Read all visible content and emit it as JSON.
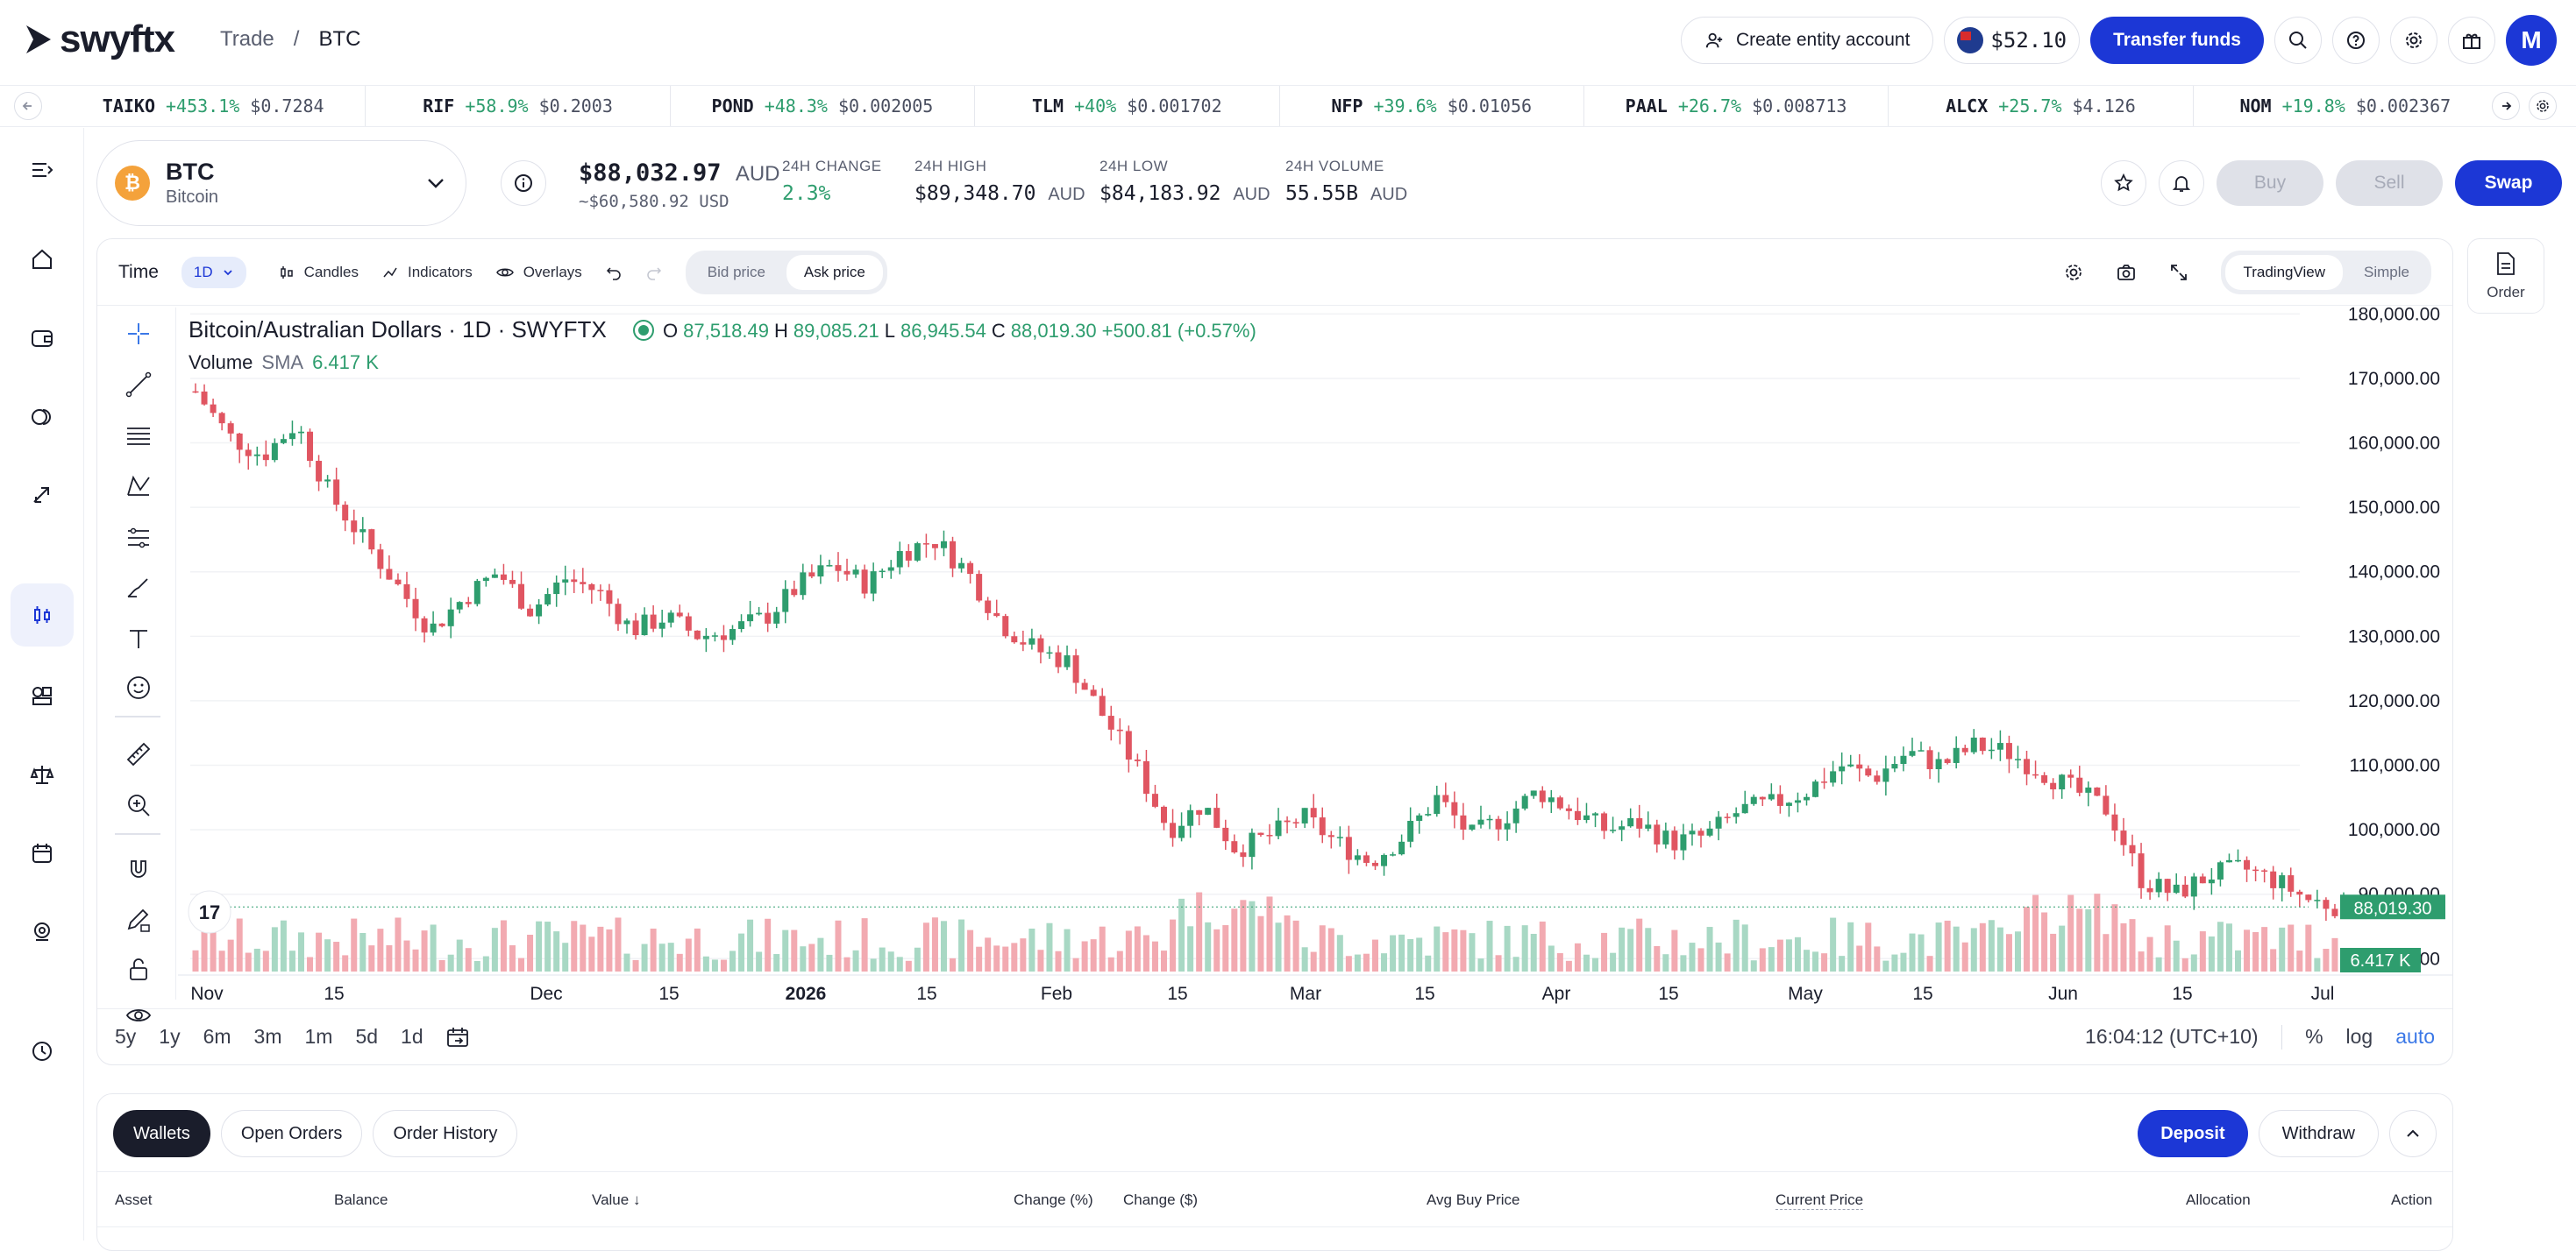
{
  "header": {
    "logo_text": "swyftx",
    "breadcrumb": [
      "Trade",
      "/",
      "BTC"
    ],
    "create_entity_label": "Create entity account",
    "balance": "$52.10",
    "transfer_label": "Transfer funds",
    "avatar_initial": "M"
  },
  "ticker": [
    {
      "symbol": "TAIKO",
      "change": "+453.1%",
      "price": "$0.7284"
    },
    {
      "symbol": "RIF",
      "change": "+58.9%",
      "price": "$0.2003"
    },
    {
      "symbol": "POND",
      "change": "+48.3%",
      "price": "$0.002005"
    },
    {
      "symbol": "TLM",
      "change": "+40%",
      "price": "$0.001702"
    },
    {
      "symbol": "NFP",
      "change": "+39.6%",
      "price": "$0.01056"
    },
    {
      "symbol": "PAAL",
      "change": "+26.7%",
      "price": "$0.008713"
    },
    {
      "symbol": "ALCX",
      "change": "+25.7%",
      "price": "$4.126"
    },
    {
      "symbol": "NOM",
      "change": "+19.8%",
      "price": "$0.002367"
    }
  ],
  "asset": {
    "code": "BTC",
    "name": "Bitcoin",
    "badge": "₿",
    "price": "$88,032.97",
    "price_unit": "AUD",
    "price_usd": "~$60,580.92 USD",
    "change_label": "24H CHANGE",
    "change_value": "2.3%",
    "high_label": "24H HIGH",
    "high_value": "$89,348.70",
    "high_unit": "AUD",
    "low_label": "24H LOW",
    "low_value": "$84,183.92",
    "low_unit": "AUD",
    "volume_label": "24H VOLUME",
    "volume_value": "55.55B",
    "volume_unit": "AUD",
    "buy_label": "Buy",
    "sell_label": "Sell",
    "swap_label": "Swap"
  },
  "chart_toolbar": {
    "time_label": "Time",
    "interval": "1D",
    "candles_label": "Candles",
    "indicators_label": "Indicators",
    "overlays_label": "Overlays",
    "bid_label": "Bid price",
    "ask_label": "Ask price",
    "mode_tradingview": "TradingView",
    "mode_simple": "Simple"
  },
  "chart_legend": {
    "title": "Bitcoin/Australian Dollars · 1D · SWYFTX",
    "o_label": "O",
    "o_value": "87,518.49",
    "h_label": "H",
    "h_value": "89,085.21",
    "l_label": "L",
    "l_value": "86,945.54",
    "c_label": "C",
    "c_value": "88,019.30",
    "change": "+500.81 (+0.57%)",
    "volume_label": "Volume",
    "volume_sma": "SMA",
    "volume_value": "6.417 K"
  },
  "chart_data": {
    "type": "candlestick",
    "y_ticks": [
      "180,000.00",
      "170,000.00",
      "160,000.00",
      "150,000.00",
      "140,000.00",
      "130,000.00",
      "120,000.00",
      "110,000.00",
      "100,000.00",
      "90,000.00",
      "80,000.00"
    ],
    "ylim": [
      78000,
      181000
    ],
    "x_ticks": [
      "Nov",
      "15",
      "Dec",
      "15",
      "2026",
      "15",
      "Feb",
      "15",
      "Mar",
      "15",
      "Apr",
      "15",
      "May",
      "15",
      "Jun",
      "15",
      "Jul"
    ],
    "last_price_label": "88,019.30",
    "last_volume_label": "6.417 K",
    "approx_close_path": [
      168000,
      161000,
      158000,
      163000,
      152000,
      145000,
      138000,
      131000,
      136000,
      140000,
      134000,
      139000,
      137000,
      131000,
      133000,
      130000,
      131000,
      133000,
      138000,
      141000,
      138000,
      143000,
      145000,
      140000,
      132000,
      128000,
      126000,
      118000,
      110000,
      100000,
      104000,
      97000,
      99000,
      102000,
      98000,
      95000,
      99000,
      105000,
      99000,
      102000,
      106000,
      103000,
      100000,
      101000,
      98000,
      99000,
      103000,
      104000,
      106000,
      110000,
      108000,
      112000,
      110000,
      113000,
      112000,
      109000,
      106000,
      103000,
      92000,
      90000,
      93000,
      94000,
      92000,
      89000,
      88000
    ]
  },
  "chart_bottom": {
    "ranges": [
      "5y",
      "1y",
      "6m",
      "3m",
      "1m",
      "5d",
      "1d"
    ],
    "time": "16:04:12 (UTC+10)",
    "percent": "%",
    "log": "log",
    "auto": "auto"
  },
  "order_tab": {
    "label": "Order"
  },
  "wallet": {
    "tabs": [
      "Wallets",
      "Open Orders",
      "Order History"
    ],
    "deposit_label": "Deposit",
    "withdraw_label": "Withdraw",
    "columns": [
      "Asset",
      "Balance",
      "Value ↓",
      "Change (%)",
      "Change ($)",
      "Avg Buy Price",
      "Current Price",
      "Allocation",
      "Action"
    ]
  }
}
